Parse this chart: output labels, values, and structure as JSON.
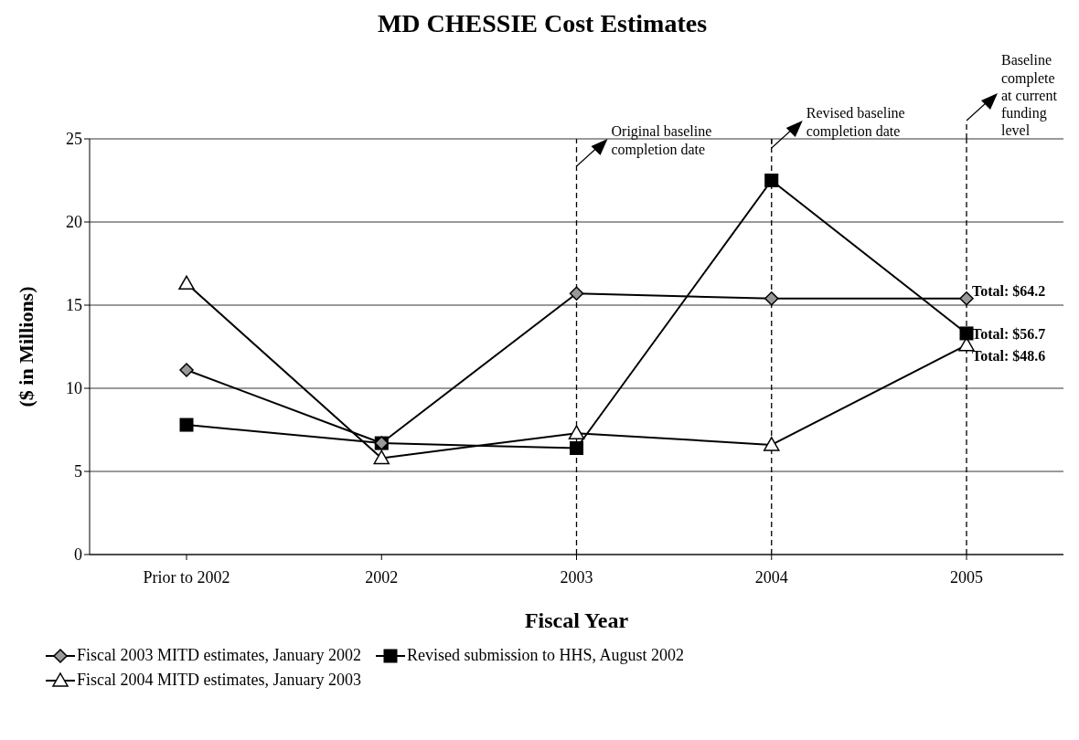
{
  "chart_data": {
    "type": "line",
    "title": "MD CHESSIE Cost Estimates",
    "xlabel": "Fiscal Year",
    "ylabel": "($ in Millions)",
    "categories": [
      "Prior to 2002",
      "2002",
      "2003",
      "2004",
      "2005"
    ],
    "series": [
      {
        "name": "Fiscal 2003 MITD estimates, January 2002",
        "color": "#999999",
        "marker": "diamond",
        "values": [
          11.1,
          6.7,
          15.7,
          15.4,
          15.4
        ]
      },
      {
        "name": "Revised submission to HHS, August 2002",
        "color": "#000000",
        "marker": "square",
        "values": [
          7.8,
          6.7,
          6.4,
          22.5,
          13.3
        ]
      },
      {
        "name": "Fiscal 2004 MITD estimates, January 2003",
        "color": "#ffffff",
        "marker": "triangle",
        "values": [
          16.3,
          5.8,
          7.3,
          6.6,
          12.6
        ]
      }
    ],
    "ylim": [
      0,
      25
    ],
    "yticks": [
      0,
      5,
      10,
      15,
      20,
      25
    ],
    "grid": "y",
    "legend": "bottom",
    "line_style": "solid",
    "ref_lines": [
      {
        "axis": "x",
        "value": "2003",
        "label": "Original baseline completion date",
        "line_style": "dashed"
      },
      {
        "axis": "x",
        "value": "2004",
        "label": "Revised baseline completion date",
        "line_style": "dashed"
      },
      {
        "axis": "x",
        "value": "2005",
        "label": "Baseline complete at current funding level",
        "line_style": "dashed"
      }
    ],
    "annotations": [
      {
        "text": "Total: $64.2",
        "x": "2005",
        "y": 15.4
      },
      {
        "text": "Total: $56.7",
        "x": "2005",
        "y": 13.3
      },
      {
        "text": "Total: $48.6",
        "x": "2005",
        "y": 12.6
      }
    ]
  }
}
